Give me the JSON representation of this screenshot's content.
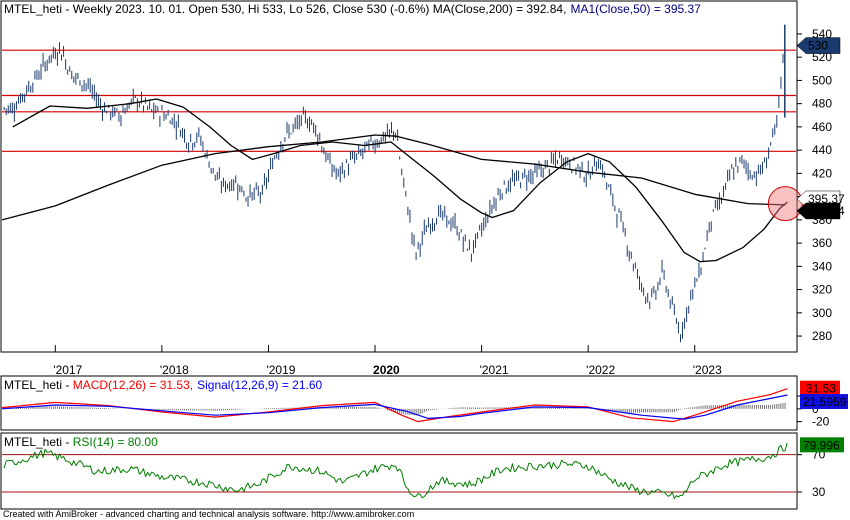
{
  "chart_data": [
    {
      "type": "candlestick",
      "title": {
        "symbol": "MTEL_heti",
        "info": " - Weekly 2023. 10. 01. Open 530, Hi 533, Lo 526, Close 530 (-0.6%) ",
        "ma200": "MA(Close,200) = 392.84,",
        "ma50": "MA1(Close,50) = 395.37"
      },
      "ylim": [
        268,
        552
      ],
      "y_ticks": [
        280,
        300,
        320,
        340,
        360,
        380,
        400,
        420,
        440,
        460,
        480,
        500,
        520,
        540
      ],
      "x_ticks": [
        "2017",
        "2018",
        "2019",
        "2020",
        "2021",
        "2022",
        "2023"
      ],
      "horizontal_levels": [
        526,
        487,
        473,
        439
      ],
      "price_path": [
        [
          2016.6,
          476
        ],
        [
          2016.8,
          500
        ],
        [
          2016.95,
          520
        ],
        [
          2017.05,
          527
        ],
        [
          2017.15,
          505
        ],
        [
          2017.3,
          496
        ],
        [
          2017.45,
          476
        ],
        [
          2017.6,
          470
        ],
        [
          2017.75,
          484
        ],
        [
          2017.9,
          474
        ],
        [
          2018.05,
          470
        ],
        [
          2018.15,
          462
        ],
        [
          2018.25,
          448
        ],
        [
          2018.35,
          452
        ],
        [
          2018.45,
          428
        ],
        [
          2018.55,
          410
        ],
        [
          2018.7,
          412
        ],
        [
          2018.8,
          400
        ],
        [
          2018.95,
          404
        ],
        [
          2019.05,
          432
        ],
        [
          2019.15,
          452
        ],
        [
          2019.25,
          460
        ],
        [
          2019.35,
          468
        ],
        [
          2019.45,
          458
        ],
        [
          2019.55,
          432
        ],
        [
          2019.65,
          418
        ],
        [
          2019.75,
          428
        ],
        [
          2019.85,
          436
        ],
        [
          2019.95,
          444
        ],
        [
          2020.1,
          452
        ],
        [
          2020.2,
          457
        ],
        [
          2020.25,
          420
        ],
        [
          2020.32,
          385
        ],
        [
          2020.38,
          350
        ],
        [
          2020.48,
          372
        ],
        [
          2020.6,
          385
        ],
        [
          2020.75,
          375
        ],
        [
          2020.9,
          352
        ],
        [
          2021.0,
          372
        ],
        [
          2021.1,
          392
        ],
        [
          2021.2,
          408
        ],
        [
          2021.35,
          415
        ],
        [
          2021.5,
          420
        ],
        [
          2021.6,
          425
        ],
        [
          2021.75,
          434
        ],
        [
          2021.9,
          425
        ],
        [
          2022.0,
          418
        ],
        [
          2022.1,
          432
        ],
        [
          2022.2,
          405
        ],
        [
          2022.3,
          380
        ],
        [
          2022.4,
          350
        ],
        [
          2022.5,
          322
        ],
        [
          2022.6,
          310
        ],
        [
          2022.7,
          335
        ],
        [
          2022.8,
          300
        ],
        [
          2022.87,
          282
        ],
        [
          2022.95,
          310
        ],
        [
          2023.05,
          336
        ],
        [
          2023.15,
          380
        ],
        [
          2023.25,
          398
        ],
        [
          2023.35,
          422
        ],
        [
          2023.45,
          430
        ],
        [
          2023.55,
          418
        ],
        [
          2023.65,
          425
        ],
        [
          2023.72,
          448
        ],
        [
          2023.78,
          465
        ],
        [
          2023.82,
          510
        ],
        [
          2023.85,
          544
        ],
        [
          2023.87,
          530
        ]
      ],
      "ma200_path": [
        [
          2016.5,
          380
        ],
        [
          2017.0,
          392
        ],
        [
          2017.5,
          410
        ],
        [
          2018.0,
          427
        ],
        [
          2018.5,
          437
        ],
        [
          2019.0,
          443
        ],
        [
          2019.5,
          447
        ],
        [
          2020.0,
          453
        ],
        [
          2020.2,
          452
        ],
        [
          2020.5,
          445
        ],
        [
          2021.0,
          432
        ],
        [
          2021.5,
          428
        ],
        [
          2022.0,
          421
        ],
        [
          2022.5,
          416
        ],
        [
          2023.0,
          402
        ],
        [
          2023.5,
          394
        ],
        [
          2023.85,
          392.84
        ]
      ],
      "ma50_path": [
        [
          2016.6,
          460
        ],
        [
          2016.95,
          478
        ],
        [
          2017.3,
          476
        ],
        [
          2017.7,
          480
        ],
        [
          2017.95,
          484
        ],
        [
          2018.2,
          477
        ],
        [
          2018.45,
          460
        ],
        [
          2018.65,
          444
        ],
        [
          2018.85,
          432
        ],
        [
          2019.05,
          437
        ],
        [
          2019.3,
          444
        ],
        [
          2019.6,
          447
        ],
        [
          2019.9,
          444
        ],
        [
          2020.15,
          447
        ],
        [
          2020.3,
          436
        ],
        [
          2020.55,
          418
        ],
        [
          2020.8,
          398
        ],
        [
          2021.0,
          386
        ],
        [
          2021.1,
          382
        ],
        [
          2021.3,
          388
        ],
        [
          2021.55,
          412
        ],
        [
          2021.8,
          430
        ],
        [
          2022.0,
          437
        ],
        [
          2022.2,
          430
        ],
        [
          2022.45,
          408
        ],
        [
          2022.7,
          378
        ],
        [
          2022.9,
          352
        ],
        [
          2023.05,
          344
        ],
        [
          2023.2,
          345
        ],
        [
          2023.45,
          356
        ],
        [
          2023.65,
          372
        ],
        [
          2023.8,
          390
        ],
        [
          2023.87,
          395.37
        ]
      ],
      "markers": {
        "ma50_label": "395.37",
        "ma200_label": "392.84",
        "close_label": "530"
      }
    },
    {
      "type": "line",
      "title": {
        "symbol": "MTEL_heti",
        "macd": "MACD(12,26) = 31.53,",
        "signal": "Signal(12,26,9) = 21.60"
      },
      "ylim": [
        -30,
        42
      ],
      "y_ticks": [
        20,
        0,
        -20
      ],
      "series": [
        {
          "name": "MACD(12,26)",
          "color": "#ff0000",
          "points": [
            [
              2016.5,
              2
            ],
            [
              2017.0,
              10
            ],
            [
              2017.5,
              5
            ],
            [
              2018.0,
              -5
            ],
            [
              2018.5,
              -13
            ],
            [
              2019.0,
              -5
            ],
            [
              2019.5,
              5
            ],
            [
              2020.0,
              10
            ],
            [
              2020.25,
              -10
            ],
            [
              2020.4,
              -20
            ],
            [
              2020.7,
              -12
            ],
            [
              2021.0,
              -5
            ],
            [
              2021.5,
              6
            ],
            [
              2022.0,
              3
            ],
            [
              2022.4,
              -14
            ],
            [
              2022.8,
              -20
            ],
            [
              2023.0,
              -10
            ],
            [
              2023.4,
              12
            ],
            [
              2023.7,
              22
            ],
            [
              2023.87,
              31.53
            ]
          ]
        },
        {
          "name": "Signal(12,26,9)",
          "color": "#0000ff",
          "points": [
            [
              2016.5,
              0
            ],
            [
              2017.0,
              6
            ],
            [
              2017.5,
              4
            ],
            [
              2018.0,
              -3
            ],
            [
              2018.5,
              -10
            ],
            [
              2019.0,
              -6
            ],
            [
              2019.5,
              2
            ],
            [
              2020.0,
              7
            ],
            [
              2020.3,
              -4
            ],
            [
              2020.5,
              -15
            ],
            [
              2020.8,
              -12
            ],
            [
              2021.0,
              -7
            ],
            [
              2021.5,
              3
            ],
            [
              2022.0,
              2
            ],
            [
              2022.5,
              -10
            ],
            [
              2022.9,
              -16
            ],
            [
              2023.1,
              -10
            ],
            [
              2023.4,
              6
            ],
            [
              2023.7,
              16
            ],
            [
              2023.87,
              21.6
            ]
          ]
        }
      ],
      "markers": {
        "macd_label": "31.53",
        "signal_label": "21.5959"
      }
    },
    {
      "type": "line",
      "title": {
        "symbol": "MTEL_heti",
        "rsi": "RSI(14) = 80.00"
      },
      "ylim": [
        15,
        90
      ],
      "y_ticks": [
        70,
        30
      ],
      "levels": [
        70,
        30
      ],
      "series": [
        {
          "name": "RSI(14)",
          "color": "#008000",
          "points": [
            [
              2016.5,
              58
            ],
            [
              2016.9,
              72
            ],
            [
              2017.1,
              65
            ],
            [
              2017.4,
              52
            ],
            [
              2017.7,
              55
            ],
            [
              2018.0,
              46
            ],
            [
              2018.4,
              40
            ],
            [
              2018.7,
              32
            ],
            [
              2018.9,
              38
            ],
            [
              2019.2,
              58
            ],
            [
              2019.5,
              52
            ],
            [
              2019.7,
              40
            ],
            [
              2020.0,
              55
            ],
            [
              2020.2,
              60
            ],
            [
              2020.3,
              35
            ],
            [
              2020.4,
              24
            ],
            [
              2020.6,
              42
            ],
            [
              2020.9,
              38
            ],
            [
              2021.2,
              55
            ],
            [
              2021.5,
              58
            ],
            [
              2021.8,
              60
            ],
            [
              2022.0,
              58
            ],
            [
              2022.2,
              44
            ],
            [
              2022.45,
              32
            ],
            [
              2022.7,
              28
            ],
            [
              2022.87,
              24
            ],
            [
              2023.0,
              44
            ],
            [
              2023.3,
              60
            ],
            [
              2023.5,
              64
            ],
            [
              2023.7,
              68
            ],
            [
              2023.87,
              80
            ]
          ]
        }
      ],
      "markers": {
        "rsi_label": "79.996"
      }
    }
  ],
  "footer": "Created with AmiBroker - advanced charting and technical analysis software. http://www.amibroker.com"
}
